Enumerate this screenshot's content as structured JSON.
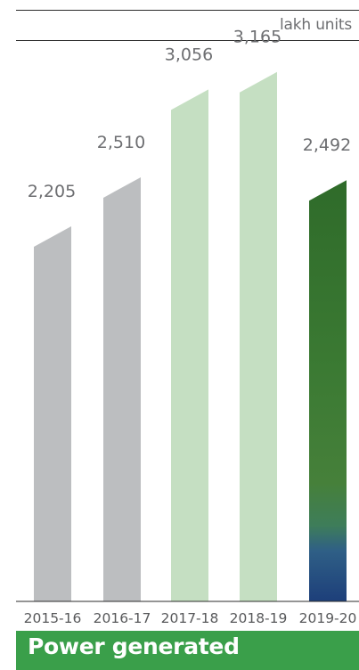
{
  "chart_data": {
    "type": "bar",
    "title": "Power generated",
    "unit": "lakh units",
    "categories": [
      "2015-16",
      "2016-17",
      "2017-18",
      "2018-19",
      "2019-20"
    ],
    "values": [
      2205,
      2510,
      3056,
      3165,
      2492
    ],
    "value_labels": [
      "2,205",
      "2,510",
      "3,056",
      "3,165",
      "2,492"
    ],
    "series": [
      {
        "values": [
          2205,
          2510,
          3056,
          3165,
          2492
        ]
      }
    ],
    "bar_colors": [
      "#bcbec0",
      "#bcbec0",
      "#c5dfc2",
      "#c5dfc2",
      "#2e6a2e"
    ],
    "ylim": [
      0,
      3200
    ],
    "grid": false,
    "xlabel": "",
    "ylabel": ""
  }
}
